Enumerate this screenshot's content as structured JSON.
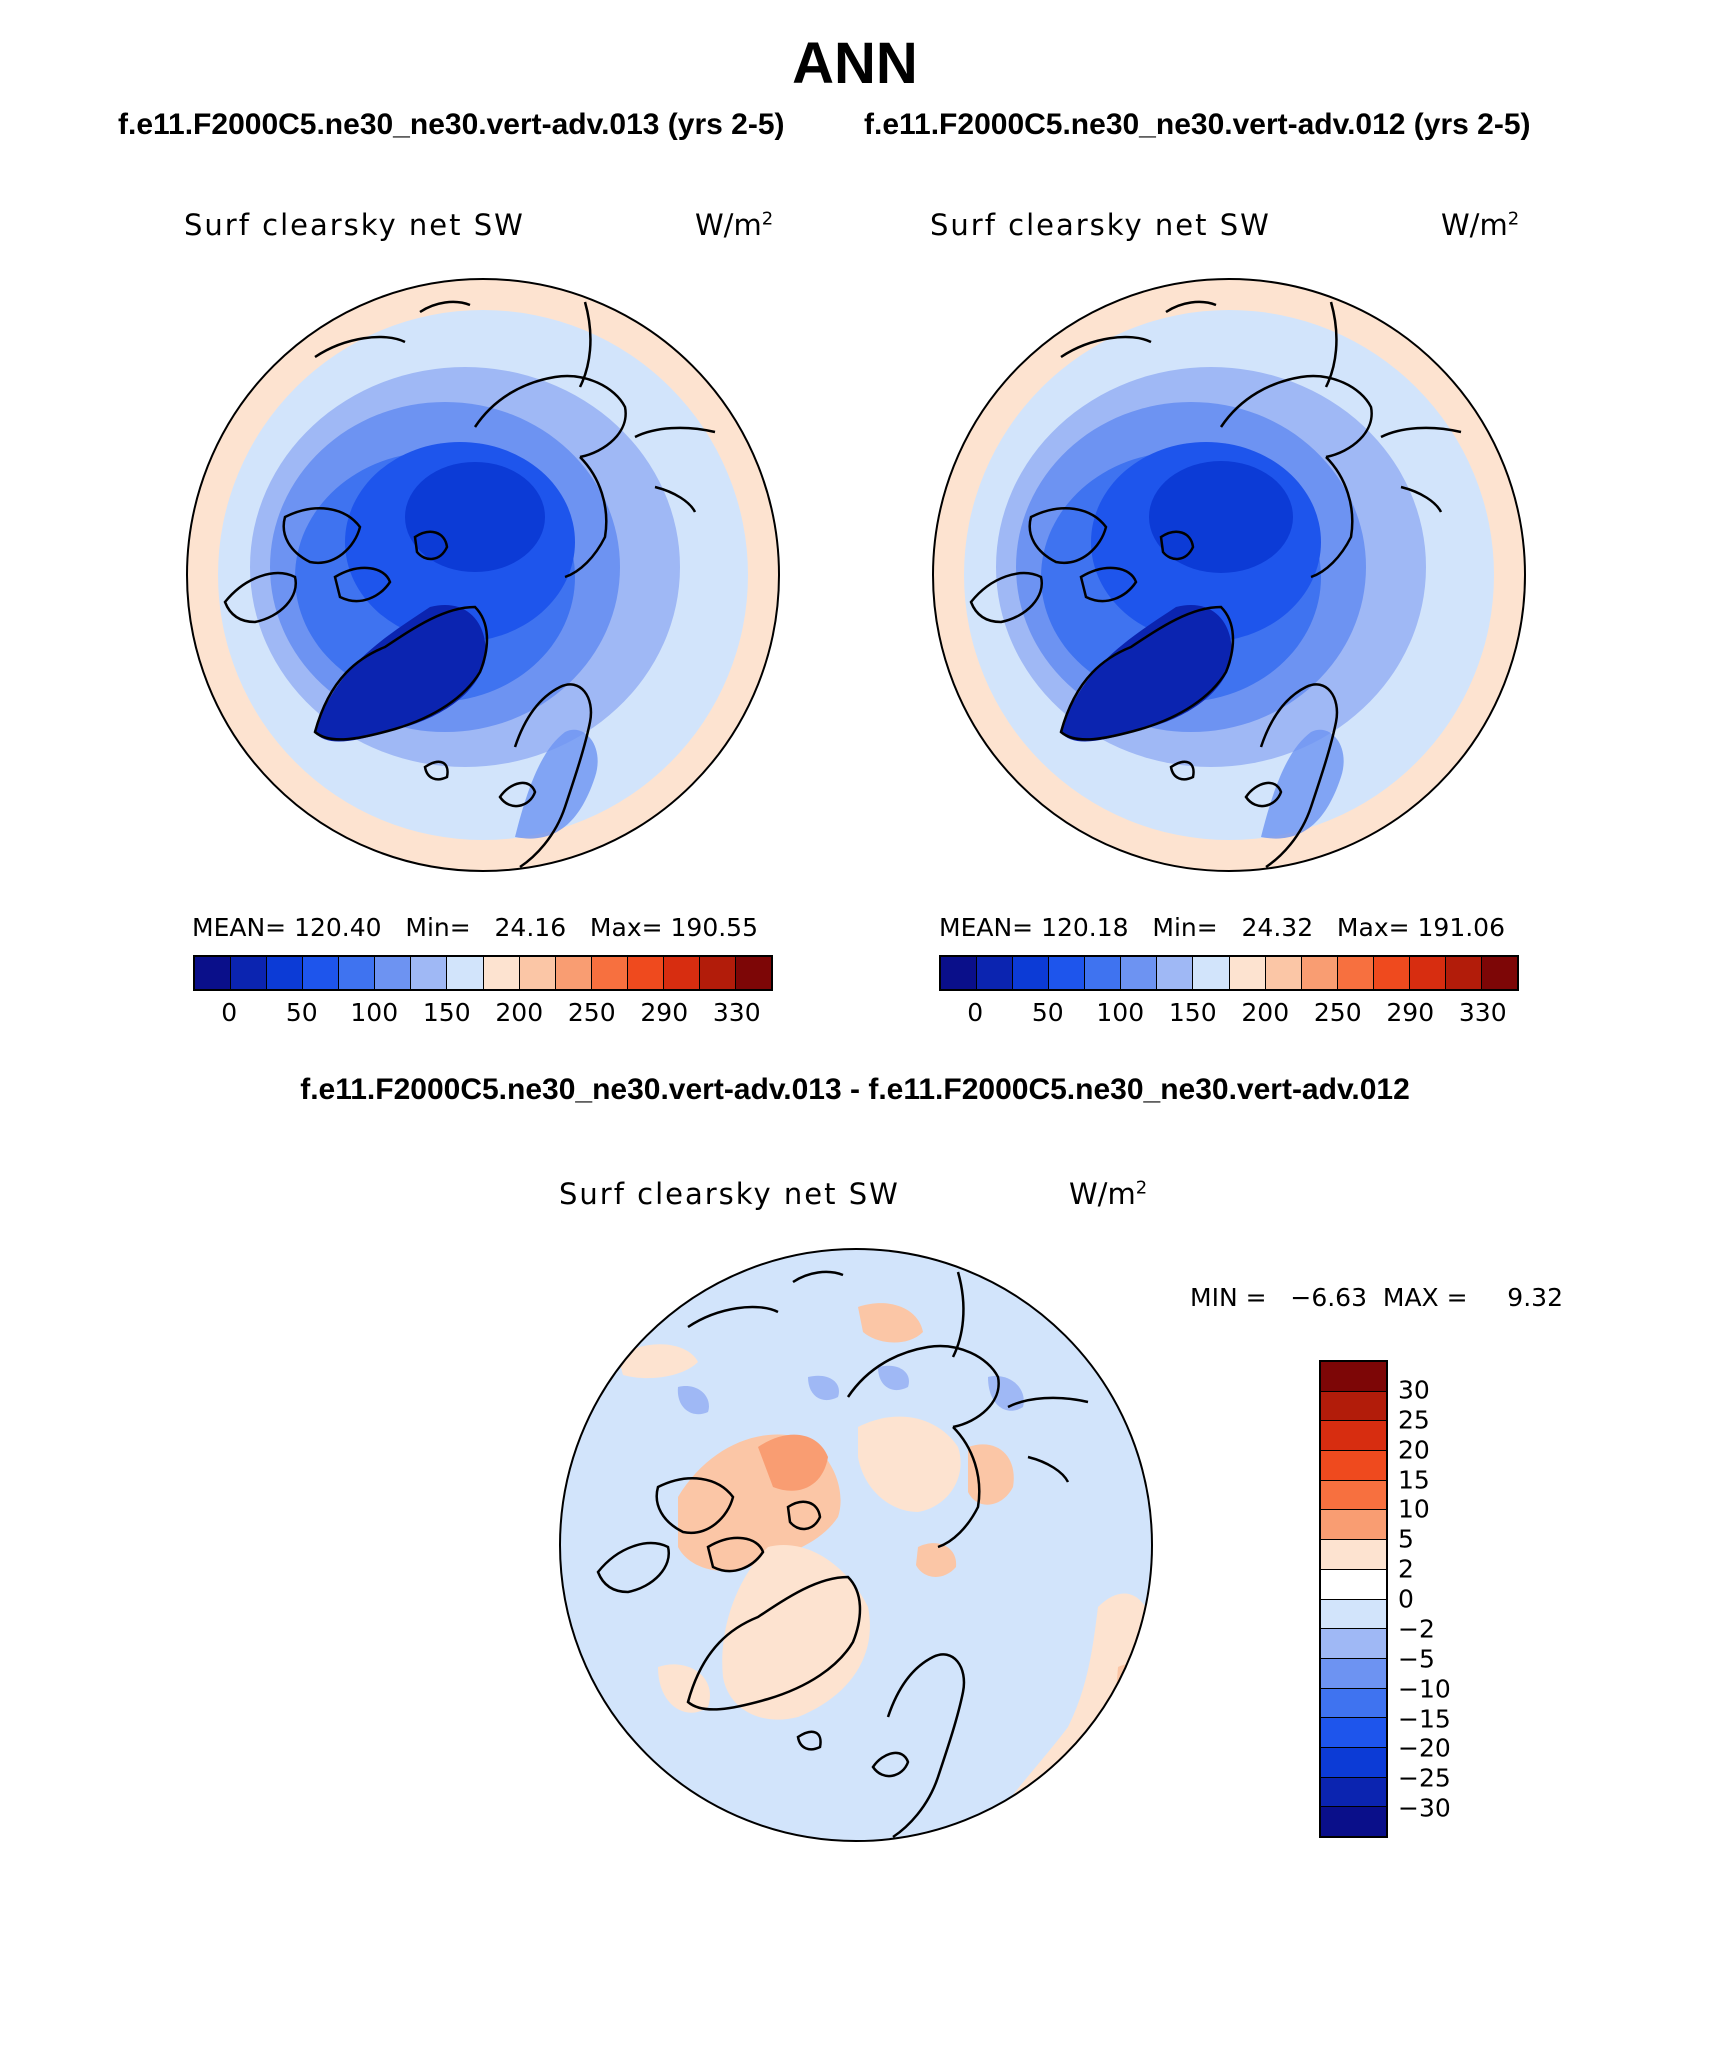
{
  "title": "ANN",
  "panels": [
    {
      "run_label": "f.e11.F2000C5.ne30_ne30.vert-adv.013 (yrs 2-5)",
      "variable": "Surf clearsky net SW",
      "units_base": "W/m",
      "units_exp": "2",
      "stats_text": "MEAN= 120.40   Min=   24.16   Max= 190.55"
    },
    {
      "run_label": "f.e11.F2000C5.ne30_ne30.vert-adv.012 (yrs 2-5)",
      "variable": "Surf clearsky net SW",
      "units_base": "W/m",
      "units_exp": "2",
      "stats_text": "MEAN= 120.18   Min=   24.32   Max= 191.06"
    }
  ],
  "difference": {
    "title": "f.e11.F2000C5.ne30_ne30.vert-adv.013 - f.e11.F2000C5.ne30_ne30.vert-adv.012",
    "variable": "Surf clearsky net SW",
    "units_base": "W/m",
    "units_exp": "2",
    "minmax_text": "MIN =   −6.63  MAX =     9.32"
  },
  "colorbar_main": {
    "colors": [
      "#0a0f8a",
      "#0b24b0",
      "#0c3bd6",
      "#1e55ec",
      "#3f73f0",
      "#6d93f2",
      "#9fb8f5",
      "#d2e4fb",
      "#fde3d0",
      "#fbc6a6",
      "#f99d72",
      "#f7703f",
      "#ef4a1e",
      "#d72d10",
      "#b21c0a",
      "#7d0606"
    ],
    "tick_labels": [
      "0",
      "50",
      "100",
      "150",
      "200",
      "250",
      "290",
      "330"
    ]
  },
  "colorbar_diff": {
    "colors": [
      "#7d0606",
      "#b21c0a",
      "#d72d10",
      "#ef4a1e",
      "#f7703f",
      "#f99d72",
      "#fde3d0",
      "#ffffff",
      "#d2e4fb",
      "#9fb8f5",
      "#6d93f2",
      "#3f73f0",
      "#1e55ec",
      "#0c3bd6",
      "#0b24b0",
      "#0a0f8a"
    ],
    "tick_labels": [
      "30",
      "25",
      "20",
      "15",
      "10",
      "5",
      "2",
      "0",
      "−2",
      "−5",
      "−10",
      "−15",
      "−20",
      "−25",
      "−30"
    ]
  }
}
